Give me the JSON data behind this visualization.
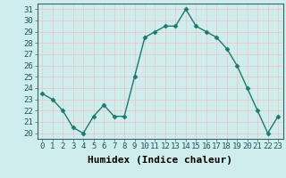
{
  "x": [
    0,
    1,
    2,
    3,
    4,
    5,
    6,
    7,
    8,
    9,
    10,
    11,
    12,
    13,
    14,
    15,
    16,
    17,
    18,
    19,
    20,
    21,
    22,
    23
  ],
  "y": [
    23.5,
    23.0,
    22.0,
    20.5,
    20.0,
    21.5,
    22.5,
    21.5,
    21.5,
    25.0,
    28.5,
    29.0,
    29.5,
    29.5,
    31.0,
    29.5,
    29.0,
    28.5,
    27.5,
    26.0,
    24.0,
    22.0,
    20.0,
    21.5
  ],
  "xlabel": "Humidex (Indice chaleur)",
  "ylim": [
    19.5,
    31.5
  ],
  "yticks": [
    20,
    21,
    22,
    23,
    24,
    25,
    26,
    27,
    28,
    29,
    30,
    31
  ],
  "xticks": [
    0,
    1,
    2,
    3,
    4,
    5,
    6,
    7,
    8,
    9,
    10,
    11,
    12,
    13,
    14,
    15,
    16,
    17,
    18,
    19,
    20,
    21,
    22,
    23
  ],
  "line_color": "#1a7a6e",
  "marker": "D",
  "marker_size": 2.5,
  "bg_color": "#d0eded",
  "grid_color": "#e8c8c8",
  "tick_label_fontsize": 6.5,
  "xlabel_fontsize": 8,
  "line_width": 1.0
}
